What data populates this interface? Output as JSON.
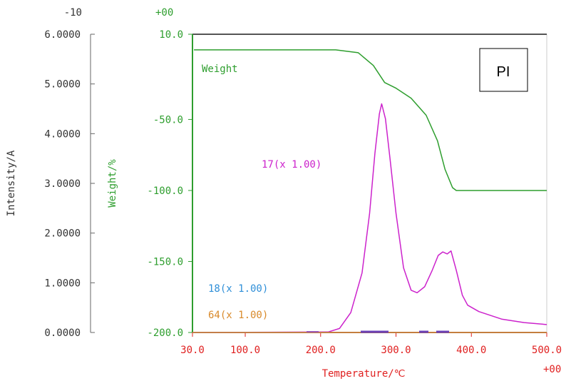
{
  "chart_data": {
    "type": "line",
    "xlabel": "Temperature/℃",
    "x_exponent": "+00",
    "xlim": [
      30,
      500
    ],
    "x_ticks": [
      {
        "value": 30,
        "label": "30.0"
      },
      {
        "value": 100,
        "label": "100.0"
      },
      {
        "value": 200,
        "label": "200.0"
      },
      {
        "value": 300,
        "label": "300.0"
      },
      {
        "value": 400,
        "label": "400.0"
      },
      {
        "value": 500,
        "label": "500.0"
      }
    ],
    "y_left": {
      "label": "Intensity/A",
      "exponent": "-10",
      "lim": [
        0,
        6
      ],
      "ticks": [
        {
          "value": 0,
          "label": "0.0000"
        },
        {
          "value": 1,
          "label": "1.0000"
        },
        {
          "value": 2,
          "label": "2.0000"
        },
        {
          "value": 3,
          "label": "3.0000"
        },
        {
          "value": 4,
          "label": "4.0000"
        },
        {
          "value": 5,
          "label": "5.0000"
        },
        {
          "value": 6,
          "label": "6.0000"
        }
      ]
    },
    "y_weight": {
      "label": "Weight/%",
      "exponent": "+00",
      "lim": [
        -200,
        10
      ],
      "ticks": [
        {
          "value": 10,
          "label": "10.0"
        },
        {
          "value": -50,
          "label": "-50.0"
        },
        {
          "value": -100,
          "label": "-100.0"
        },
        {
          "value": -150,
          "label": "-150.0"
        },
        {
          "value": -200,
          "label": "-200.0"
        }
      ]
    },
    "box_label": "PI",
    "series": [
      {
        "name": "Weight",
        "color": "#2e9e2e",
        "axis": "weight",
        "points": [
          [
            32,
            -1
          ],
          [
            80,
            -1
          ],
          [
            160,
            -1
          ],
          [
            220,
            -1
          ],
          [
            250,
            -3
          ],
          [
            270,
            -12
          ],
          [
            285,
            -24
          ],
          [
            300,
            -28
          ],
          [
            320,
            -35
          ],
          [
            340,
            -47
          ],
          [
            355,
            -65
          ],
          [
            365,
            -85
          ],
          [
            375,
            -98
          ],
          [
            380,
            -100
          ],
          [
            420,
            -100
          ],
          [
            500,
            -100
          ]
        ]
      },
      {
        "name": "17(x 1.00)",
        "color": "#cc22cc",
        "axis": "intensity",
        "points": [
          [
            30,
            0
          ],
          [
            210,
            0.01
          ],
          [
            225,
            0.08
          ],
          [
            240,
            0.4
          ],
          [
            255,
            1.2
          ],
          [
            265,
            2.4
          ],
          [
            272,
            3.6
          ],
          [
            278,
            4.4
          ],
          [
            281,
            4.6
          ],
          [
            286,
            4.3
          ],
          [
            292,
            3.5
          ],
          [
            300,
            2.4
          ],
          [
            310,
            1.3
          ],
          [
            320,
            0.85
          ],
          [
            328,
            0.8
          ],
          [
            338,
            0.92
          ],
          [
            348,
            1.25
          ],
          [
            356,
            1.55
          ],
          [
            362,
            1.62
          ],
          [
            368,
            1.58
          ],
          [
            373,
            1.64
          ],
          [
            380,
            1.25
          ],
          [
            388,
            0.75
          ],
          [
            395,
            0.55
          ],
          [
            410,
            0.42
          ],
          [
            440,
            0.27
          ],
          [
            470,
            0.2
          ],
          [
            500,
            0.16
          ]
        ]
      },
      {
        "name": "18(x 1.00)",
        "color": "#2f8fd8",
        "axis": "intensity",
        "points": [
          [
            30,
            0
          ],
          [
            500,
            0
          ]
        ]
      },
      {
        "name": "64(x 1.00)",
        "color": "#d98a2a",
        "axis": "intensity",
        "points": [
          [
            30,
            0
          ],
          [
            500,
            0
          ]
        ]
      }
    ]
  }
}
